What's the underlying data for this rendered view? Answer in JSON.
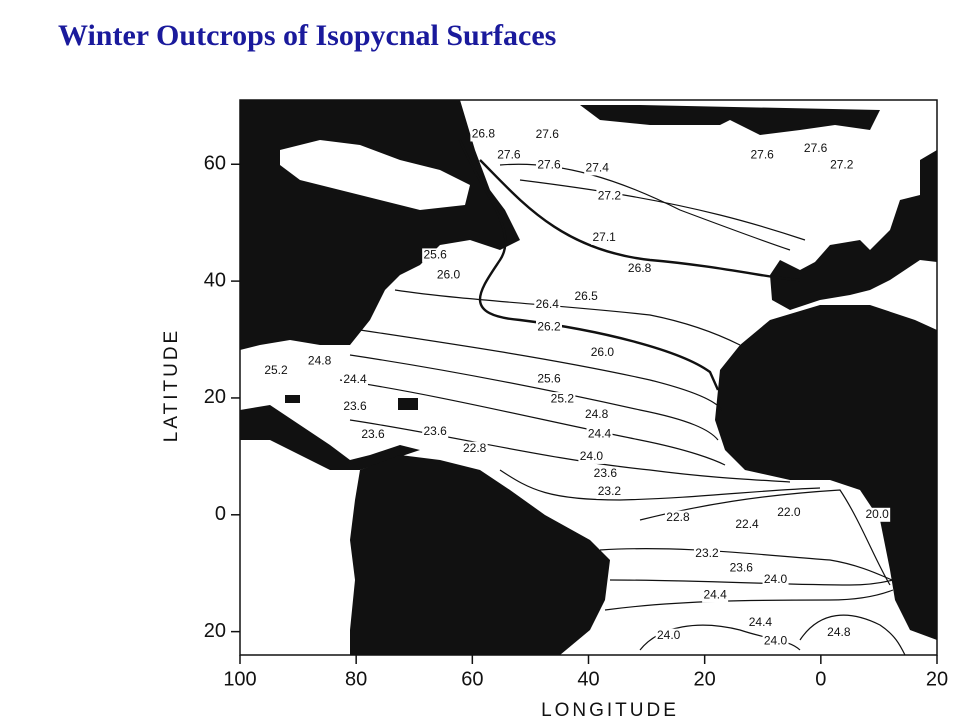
{
  "title": "Winter Outcrops of Isopycnal Surfaces",
  "map": {
    "xlabel": "LONGITUDE",
    "ylabel": "LATITUDE",
    "xlim": [
      -100,
      20
    ],
    "ylim": [
      -24,
      71
    ],
    "xticks": [
      {
        "value": -100,
        "label": "100"
      },
      {
        "value": -80,
        "label": "80"
      },
      {
        "value": -60,
        "label": "60"
      },
      {
        "value": -40,
        "label": "40"
      },
      {
        "value": -20,
        "label": "20"
      },
      0,
      20
    ],
    "yticks": [
      60,
      40,
      20,
      0,
      {
        "value": -20,
        "label": "20"
      }
    ],
    "contours": [
      {
        "value": 26.8,
        "lon": -58.1,
        "lat": 65.1
      },
      {
        "value": 27.6,
        "lon": -47.1,
        "lat": 65.0
      },
      {
        "value": 27.6,
        "lon": -53.7,
        "lat": 61.5
      },
      {
        "value": 27.6,
        "lon": -46.8,
        "lat": 59.8
      },
      {
        "value": 27.4,
        "lon": -38.5,
        "lat": 59.3
      },
      {
        "value": 27.6,
        "lon": -10.1,
        "lat": 61.5
      },
      {
        "value": 27.6,
        "lon": -0.9,
        "lat": 62.6
      },
      {
        "value": 27.2,
        "lon": 3.6,
        "lat": 59.8
      },
      {
        "value": 27.2,
        "lon": -36.4,
        "lat": 54.5
      },
      {
        "value": 27.1,
        "lon": -37.3,
        "lat": 47.4
      },
      {
        "value": 25.6,
        "lon": -66.4,
        "lat": 44.4
      },
      {
        "value": 26,
        "label": "26.0",
        "lon": -64.1,
        "lat": 41.0
      },
      {
        "value": 26.8,
        "lon": -31.2,
        "lat": 42.1
      },
      {
        "value": 26.5,
        "lon": -40.4,
        "lat": 37.3
      },
      {
        "value": 26.4,
        "lon": -47.1,
        "lat": 35.9
      },
      {
        "value": 26.2,
        "lon": -46.8,
        "lat": 32.1
      },
      {
        "value": 26,
        "label": "26.0",
        "lon": -37.6,
        "lat": 27.7
      },
      {
        "value": 25.6,
        "lon": -46.8,
        "lat": 23.2
      },
      {
        "value": 25.2,
        "lon": -44.5,
        "lat": 19.8
      },
      {
        "value": 24.8,
        "lon": -38.6,
        "lat": 17.1
      },
      {
        "value": 24.4,
        "lon": -38.1,
        "lat": 13.8
      },
      {
        "value": 24,
        "label": "24.0",
        "lon": -39.5,
        "lat": 9.9
      },
      {
        "value": 23.6,
        "lon": -37.1,
        "lat": 7.0
      },
      {
        "value": 23.2,
        "lon": -36.4,
        "lat": 3.9
      },
      {
        "value": 25.2,
        "lon": -93.8,
        "lat": 24.6
      },
      {
        "value": 24.8,
        "lon": -86.3,
        "lat": 26.3
      },
      {
        "value": 24.4,
        "lon": -80.2,
        "lat": 23.1
      },
      {
        "value": 23.6,
        "lon": -80.2,
        "lat": 18.5
      },
      {
        "value": 23.6,
        "lon": -77.1,
        "lat": 13.7
      },
      {
        "value": 23.6,
        "lon": -66.4,
        "lat": 14.2
      },
      {
        "value": 22.8,
        "lon": -59.6,
        "lat": 11.3
      },
      {
        "value": 22.8,
        "lon": -24.6,
        "lat": -0.5
      },
      {
        "value": 22.4,
        "lon": -12.7,
        "lat": -1.7
      },
      {
        "value": 22,
        "label": "22.0",
        "lon": -5.5,
        "lat": 0.3
      },
      {
        "value": 20,
        "label": "20.0",
        "lon": 9.7,
        "lat": 0
      },
      {
        "value": 23.2,
        "lon": -19.6,
        "lat": -6.7
      },
      {
        "value": 23.6,
        "lon": -13.7,
        "lat": -9.2
      },
      {
        "value": 24,
        "label": "24.0",
        "lon": -7.8,
        "lat": -11.1
      },
      {
        "value": 24.4,
        "lon": -18.2,
        "lat": -13.8
      },
      {
        "value": 24.4,
        "lon": -10.4,
        "lat": -18.5
      },
      {
        "value": 24,
        "label": "24.0",
        "lon": -7.8,
        "lat": -21.7
      },
      {
        "value": 24,
        "label": "24.0",
        "lon": -26.2,
        "lat": -20.7
      },
      {
        "value": 24.8,
        "lon": 3.1,
        "lat": -20.2
      }
    ]
  }
}
